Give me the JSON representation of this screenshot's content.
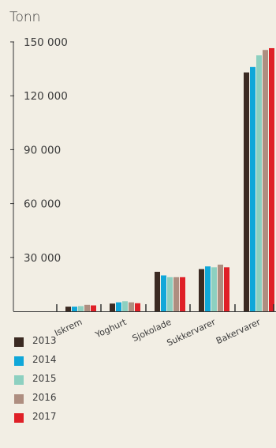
{
  "chart_data": {
    "type": "bar",
    "unit": "Tonn",
    "categories": [
      "Iskrem",
      "Yoghurt",
      "Sjokolade",
      "Sukkervarer",
      "Bakervarer"
    ],
    "series": [
      {
        "name": "2013",
        "color": "#3b2a22",
        "values": [
          2600,
          4300,
          22000,
          23500,
          133000
        ]
      },
      {
        "name": "2014",
        "color": "#10a7d9",
        "values": [
          2600,
          5000,
          20000,
          25000,
          136000
        ]
      },
      {
        "name": "2015",
        "color": "#8dd0c0",
        "values": [
          2900,
          5600,
          19000,
          24500,
          142500
        ]
      },
      {
        "name": "2016",
        "color": "#ae8e80",
        "values": [
          3600,
          5000,
          19000,
          26000,
          145500
        ]
      },
      {
        "name": "2017",
        "color": "#df2027",
        "values": [
          3300,
          4500,
          19000,
          24500,
          146500
        ]
      }
    ],
    "yticks": [
      {
        "value": 30000,
        "label": "30 000"
      },
      {
        "value": 60000,
        "label": "60 000"
      },
      {
        "value": 90000,
        "label": "90 000"
      },
      {
        "value": 120000,
        "label": "120 000"
      },
      {
        "value": 150000,
        "label": "150 000"
      }
    ],
    "ylim": [
      0,
      150000
    ],
    "grid": false,
    "legend_position": "bottom-left"
  }
}
